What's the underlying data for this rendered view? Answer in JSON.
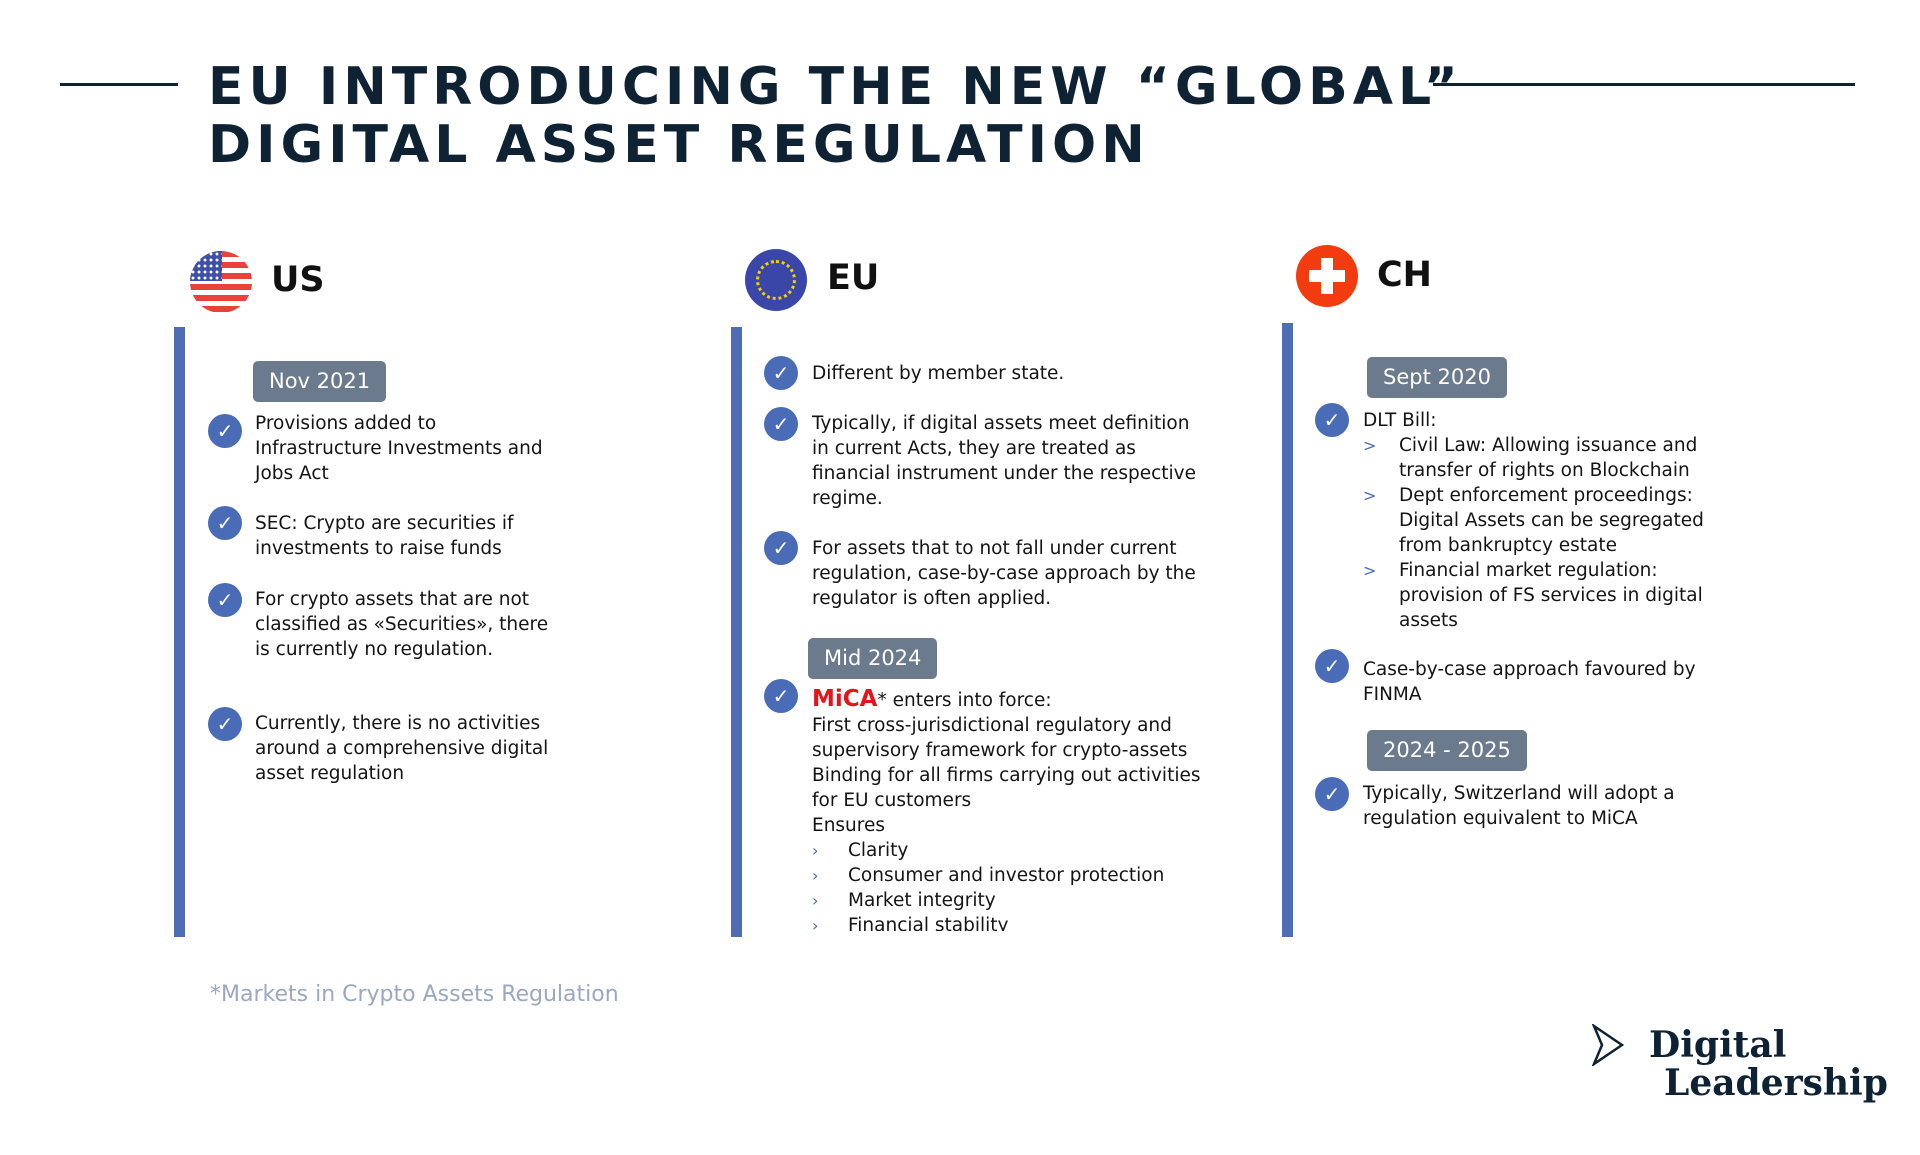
{
  "title": {
    "line1": "EU INTRODUCING THE NEW “GLOBAL”",
    "line2": "DIGITAL ASSET REGULATION"
  },
  "colors": {
    "accent_bar": "#4f6db5",
    "check": "#4a6bb5",
    "badge": "#6b7a8c",
    "mica": "#e5141b",
    "title": "#0f2233"
  },
  "columns": {
    "us": {
      "label": "US",
      "icon": "us-flag-icon",
      "badge": "Nov 2021",
      "items": [
        "Provisions added to Infrastructure Investments and Jobs Act",
        "SEC: Crypto are securities if investments to raise funds",
        "For crypto assets that are not classified as «Securities», there is currently no regulation.",
        "Currently, there is no activities around a comprehensive digital asset regulation"
      ]
    },
    "eu": {
      "label": "EU",
      "icon": "eu-flag-icon",
      "items": [
        "Different by member state.",
        "Typically, if digital assets meet definition in current Acts, they are treated as financial instrument under the respective regime.",
        "For assets that to not fall under current regulation,  case-by-case approach by the regulator is often applied."
      ],
      "badge": "Mid 2024",
      "mica": {
        "name": "MiCA",
        "rest": "* enters into force:",
        "lines": [
          "First cross-jurisdictional regulatory and supervisory framework for crypto-assets",
          "Binding for all firms carrying out activities for EU customers",
          "Ensures"
        ],
        "ensures": [
          "Clarity",
          "Consumer and investor protection",
          "Market integrity",
          "Financial stability"
        ]
      }
    },
    "ch": {
      "label": "CH",
      "icon": "swiss-flag-icon",
      "badge1": "Sept 2020",
      "dlt": "DLT Bill:",
      "dlt_subs": [
        "Civil Law: Allowing issuance and transfer of rights on Blockchain",
        "Dept enforcement proceedings: Digital Assets can be segregated from bankruptcy estate",
        "Financial market regulation: provision of FS services in digital assets"
      ],
      "item2": "Case-by-case approach favoured by FINMA",
      "badge2": "2024 - 2025",
      "item3": "Typically, Switzerland will adopt a regulation equivalent to MiCA"
    }
  },
  "footnote": "*Markets in Crypto Assets Regulation",
  "logo": {
    "line1": "Digital",
    "line2": "Leadership"
  }
}
